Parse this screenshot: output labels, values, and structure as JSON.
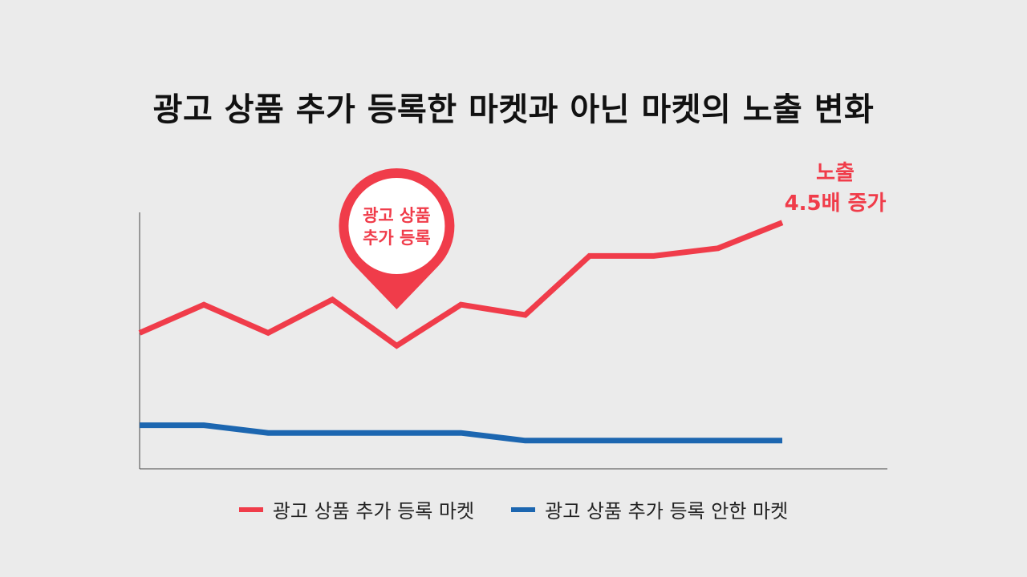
{
  "chart_data": {
    "type": "line",
    "title": "광고 상품 추가 등록한 마켓과 아닌 마켓의 노출 변화",
    "x": [
      1,
      2,
      3,
      4,
      5,
      6,
      7,
      8,
      9,
      10,
      11
    ],
    "ylim": [
      0,
      100
    ],
    "grid": false,
    "legend_position": "bottom",
    "series": [
      {
        "name": "광고 상품 추가 등록 마켓",
        "color": "#f03c4a",
        "values": [
          53,
          64,
          53,
          66,
          48,
          64,
          60,
          83,
          83,
          86,
          96
        ]
      },
      {
        "name": "광고 상품 추가 등록 안한 마켓",
        "color": "#1c66b0",
        "values": [
          17,
          17,
          14,
          14,
          14,
          14,
          11,
          11,
          11,
          11,
          11
        ]
      }
    ],
    "annotations": [
      {
        "id": "pin",
        "text_lines": [
          "광고 상품",
          "추가 등록"
        ],
        "at_x": 5
      },
      {
        "id": "growth",
        "text_lines": [
          "노출",
          "4.5배 증가"
        ],
        "at_x": 11
      }
    ]
  }
}
